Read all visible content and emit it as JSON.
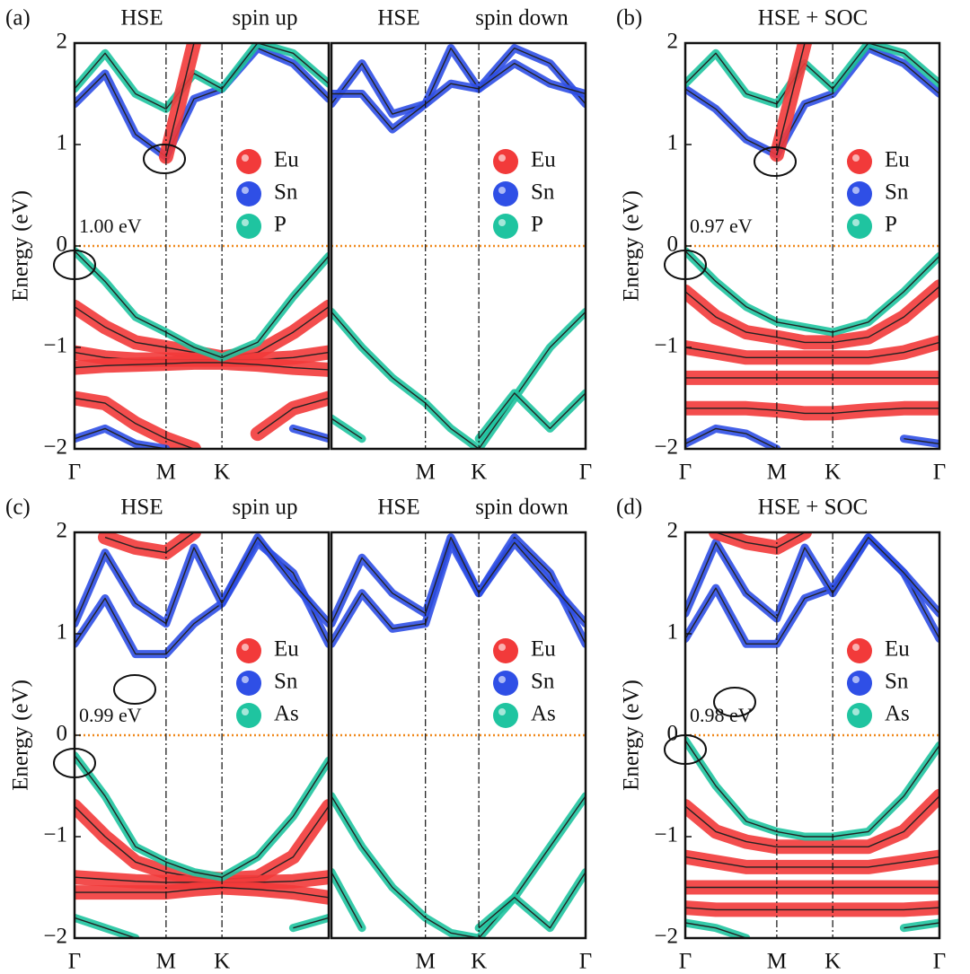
{
  "chart_data": [
    {
      "type": "line",
      "label": "(a)",
      "title": "HSE",
      "subtitle": "spin up",
      "ylabel": "Energy (eV)",
      "annotation": "1.00 eV",
      "xlim": [
        0,
        1
      ],
      "xticks": [
        {
          "value": 0,
          "label": "Γ"
        },
        {
          "value": 0.36,
          "label": "M"
        },
        {
          "value": 0.58,
          "label": "K"
        }
      ],
      "ylim": [
        -2,
        2
      ],
      "yticks": [
        {
          "value": -2,
          "label": "−2"
        },
        {
          "value": -1,
          "label": "−1"
        },
        0,
        1,
        2
      ],
      "hline": 0,
      "hline_color": "#f08a1e",
      "series": [
        {
          "name": "Eu",
          "color": "#f23a3a"
        },
        {
          "name": "Sn",
          "color": "#2f4fe6"
        },
        {
          "name": "P",
          "color": "#1fc4a0"
        }
      ],
      "x": [
        0,
        0.12,
        0.24,
        0.36,
        0.47,
        0.58,
        0.72,
        0.86,
        1
      ],
      "bands": [
        {
          "color": "#2f4fe6",
          "values": [
            1.4,
            1.7,
            1.1,
            0.88,
            1.45,
            1.55,
            1.95,
            1.8,
            1.45
          ]
        },
        {
          "color": "#1fc4a0",
          "values": [
            1.55,
            1.9,
            1.5,
            1.35,
            1.7,
            1.55,
            2.0,
            1.9,
            1.6
          ]
        },
        {
          "color": "#f23a3a",
          "values": [
            null,
            null,
            null,
            0.88,
            2.0,
            null,
            null,
            null,
            null
          ]
        },
        {
          "color": "#f23a3a",
          "values": [
            -0.6,
            -0.8,
            -0.95,
            -1.0,
            -1.05,
            -1.1,
            -1.05,
            -0.85,
            -0.6
          ]
        },
        {
          "color": "#f23a3a",
          "values": [
            -1.05,
            -1.1,
            -1.12,
            -1.12,
            -1.12,
            -1.12,
            -1.12,
            -1.1,
            -1.05
          ]
        },
        {
          "color": "#f23a3a",
          "values": [
            -1.2,
            -1.18,
            -1.17,
            -1.16,
            -1.15,
            -1.15,
            -1.17,
            -1.2,
            -1.22
          ]
        },
        {
          "color": "#1fc4a0",
          "values": [
            -0.05,
            -0.35,
            -0.7,
            -0.85,
            -1.0,
            -1.1,
            -0.95,
            -0.5,
            -0.1
          ]
        },
        {
          "color": "#f23a3a",
          "values": [
            -1.5,
            -1.55,
            -1.75,
            -1.9,
            -2.0,
            null,
            -1.85,
            -1.6,
            -1.5
          ]
        },
        {
          "color": "#2f4fe6",
          "values": [
            -1.9,
            -1.8,
            -1.95,
            -2.0,
            null,
            null,
            null,
            -1.8,
            -1.9
          ]
        }
      ]
    },
    {
      "type": "line",
      "title": "HSE",
      "subtitle": "spin down",
      "xlim": [
        0,
        1
      ],
      "xticks": [
        {
          "value": 0.37,
          "label": "M"
        },
        {
          "value": 0.58,
          "label": "K"
        },
        {
          "value": 1,
          "label": "Γ"
        }
      ],
      "ylim": [
        -2,
        2
      ],
      "hline": 0,
      "hline_color": "#f08a1e",
      "series": [
        {
          "name": "Eu",
          "color": "#f23a3a"
        },
        {
          "name": "Sn",
          "color": "#2f4fe6"
        },
        {
          "name": "P",
          "color": "#1fc4a0"
        }
      ],
      "x": [
        0,
        0.12,
        0.24,
        0.37,
        0.47,
        0.58,
        0.72,
        0.86,
        1
      ],
      "bands": [
        {
          "color": "#2f4fe6",
          "values": [
            1.4,
            1.8,
            1.3,
            1.4,
            1.95,
            1.55,
            1.95,
            1.8,
            1.4
          ]
        },
        {
          "color": "#2f4fe6",
          "values": [
            1.5,
            1.5,
            1.15,
            1.4,
            1.6,
            1.55,
            1.8,
            1.6,
            1.5
          ]
        },
        {
          "color": "#1fc4a0",
          "values": [
            -0.65,
            -1.0,
            -1.3,
            -1.55,
            -1.8,
            -2.0,
            -1.5,
            -1.0,
            -0.65
          ]
        },
        {
          "color": "#1fc4a0",
          "values": [
            -1.7,
            -1.9,
            null,
            null,
            null,
            null,
            null,
            null,
            null
          ]
        },
        {
          "color": "#1fc4a0",
          "values": [
            null,
            null,
            null,
            null,
            null,
            -1.9,
            -1.45,
            -1.8,
            -1.45
          ]
        }
      ]
    },
    {
      "type": "line",
      "label": "(b)",
      "title": "HSE + SOC",
      "ylabel": "Energy (eV)",
      "annotation": "0.97 eV",
      "xlim": [
        0,
        1
      ],
      "xticks": [
        {
          "value": 0,
          "label": "Γ"
        },
        {
          "value": 0.36,
          "label": "M"
        },
        {
          "value": 0.58,
          "label": "K"
        },
        {
          "value": 1,
          "label": "Γ"
        }
      ],
      "ylim": [
        -2,
        2
      ],
      "yticks": [
        {
          "value": -2,
          "label": "−2"
        },
        {
          "value": -1,
          "label": "−1"
        },
        0,
        1,
        2
      ],
      "hline": 0,
      "hline_color": "#f08a1e",
      "series": [
        {
          "name": "Eu",
          "color": "#f23a3a"
        },
        {
          "name": "Sn",
          "color": "#2f4fe6"
        },
        {
          "name": "P",
          "color": "#1fc4a0"
        }
      ],
      "x": [
        0,
        0.12,
        0.24,
        0.36,
        0.47,
        0.58,
        0.72,
        0.86,
        1
      ],
      "bands": [
        {
          "color": "#2f4fe6",
          "values": [
            1.55,
            1.35,
            1.05,
            0.9,
            1.4,
            1.5,
            1.95,
            1.8,
            1.5
          ]
        },
        {
          "color": "#1fc4a0",
          "values": [
            1.6,
            1.9,
            1.5,
            1.4,
            1.8,
            1.55,
            2.0,
            1.9,
            1.6
          ]
        },
        {
          "color": "#f23a3a",
          "values": [
            null,
            null,
            null,
            0.9,
            2.0,
            null,
            null,
            null,
            null
          ]
        },
        {
          "color": "#f23a3a",
          "values": [
            -0.45,
            -0.7,
            -0.85,
            -0.9,
            -0.95,
            -0.95,
            -0.9,
            -0.7,
            -0.4
          ]
        },
        {
          "color": "#f23a3a",
          "values": [
            -1.0,
            -1.05,
            -1.1,
            -1.1,
            -1.1,
            -1.1,
            -1.1,
            -1.05,
            -0.95
          ]
        },
        {
          "color": "#f23a3a",
          "values": [
            -1.3,
            -1.3,
            -1.3,
            -1.3,
            -1.3,
            -1.3,
            -1.3,
            -1.3,
            -1.3
          ]
        },
        {
          "color": "#f23a3a",
          "values": [
            -1.6,
            -1.6,
            -1.6,
            -1.62,
            -1.65,
            -1.65,
            -1.62,
            -1.6,
            -1.6
          ]
        },
        {
          "color": "#1fc4a0",
          "values": [
            -0.05,
            -0.35,
            -0.6,
            -0.75,
            -0.8,
            -0.85,
            -0.75,
            -0.45,
            -0.1
          ]
        },
        {
          "color": "#2f4fe6",
          "values": [
            -1.95,
            -1.8,
            -1.85,
            -2.0,
            null,
            null,
            null,
            -1.9,
            -1.95
          ]
        }
      ]
    },
    {
      "type": "line",
      "label": "(c)",
      "title": "HSE",
      "subtitle": "spin up",
      "ylabel": "Energy (eV)",
      "annotation": "0.99 eV",
      "xlim": [
        0,
        1
      ],
      "xticks": [
        {
          "value": 0,
          "label": "Γ"
        },
        {
          "value": 0.36,
          "label": "M"
        },
        {
          "value": 0.58,
          "label": "K"
        }
      ],
      "ylim": [
        -2,
        2
      ],
      "yticks": [
        {
          "value": -2,
          "label": "−2"
        },
        {
          "value": -1,
          "label": "−1"
        },
        0,
        1,
        2
      ],
      "hline": 0,
      "hline_color": "#f08a1e",
      "series": [
        {
          "name": "Eu",
          "color": "#f23a3a"
        },
        {
          "name": "Sn",
          "color": "#2f4fe6"
        },
        {
          "name": "As",
          "color": "#1fc4a0"
        }
      ],
      "x": [
        0,
        0.12,
        0.24,
        0.36,
        0.47,
        0.58,
        0.72,
        0.86,
        1
      ],
      "bands": [
        {
          "color": "#2f4fe6",
          "values": [
            0.9,
            1.35,
            0.8,
            0.8,
            1.1,
            1.3,
            1.9,
            1.6,
            0.9
          ]
        },
        {
          "color": "#2f4fe6",
          "values": [
            1.1,
            1.8,
            1.3,
            1.1,
            1.85,
            1.3,
            1.95,
            1.5,
            1.1
          ]
        },
        {
          "color": "#f23a3a",
          "values": [
            null,
            1.95,
            1.85,
            1.8,
            2.0,
            null,
            null,
            null,
            null
          ]
        },
        {
          "color": "#f23a3a",
          "values": [
            -0.7,
            -1.0,
            -1.25,
            -1.35,
            -1.4,
            -1.42,
            -1.4,
            -1.2,
            -0.7
          ]
        },
        {
          "color": "#f23a3a",
          "values": [
            -1.4,
            -1.42,
            -1.44,
            -1.45,
            -1.45,
            -1.45,
            -1.45,
            -1.44,
            -1.4
          ]
        },
        {
          "color": "#f23a3a",
          "values": [
            -1.55,
            -1.55,
            -1.55,
            -1.55,
            -1.52,
            -1.5,
            -1.52,
            -1.55,
            -1.6
          ]
        },
        {
          "color": "#1fc4a0",
          "values": [
            -0.2,
            -0.6,
            -1.1,
            -1.25,
            -1.35,
            -1.4,
            -1.2,
            -0.8,
            -0.25
          ]
        },
        {
          "color": "#1fc4a0",
          "values": [
            -1.8,
            -1.9,
            -2.0,
            null,
            null,
            null,
            null,
            -1.9,
            -1.8
          ]
        }
      ]
    },
    {
      "type": "line",
      "title": "HSE",
      "subtitle": "spin down",
      "xlim": [
        0,
        1
      ],
      "xticks": [
        {
          "value": 0.37,
          "label": "M"
        },
        {
          "value": 0.58,
          "label": "K"
        },
        {
          "value": 1,
          "label": "Γ"
        }
      ],
      "ylim": [
        -2,
        2
      ],
      "hline": 0,
      "hline_color": "#f08a1e",
      "series": [
        {
          "name": "Eu",
          "color": "#f23a3a"
        },
        {
          "name": "Sn",
          "color": "#2f4fe6"
        },
        {
          "name": "As",
          "color": "#1fc4a0"
        }
      ],
      "x": [
        0,
        0.12,
        0.24,
        0.37,
        0.47,
        0.58,
        0.72,
        0.86,
        1
      ],
      "bands": [
        {
          "color": "#2f4fe6",
          "values": [
            0.9,
            1.4,
            1.05,
            1.1,
            1.9,
            1.4,
            1.95,
            1.6,
            0.9
          ]
        },
        {
          "color": "#2f4fe6",
          "values": [
            1.1,
            1.75,
            1.4,
            1.2,
            1.95,
            1.4,
            1.9,
            1.5,
            1.1
          ]
        },
        {
          "color": "#1fc4a0",
          "values": [
            -0.6,
            -1.1,
            -1.5,
            -1.8,
            -1.95,
            -2.0,
            -1.6,
            -1.1,
            -0.6
          ]
        },
        {
          "color": "#1fc4a0",
          "values": [
            -1.35,
            -1.9,
            null,
            null,
            null,
            null,
            null,
            null,
            null
          ]
        },
        {
          "color": "#1fc4a0",
          "values": [
            null,
            null,
            null,
            null,
            null,
            -1.9,
            -1.6,
            -1.9,
            -1.35
          ]
        }
      ]
    },
    {
      "type": "line",
      "label": "(d)",
      "title": "HSE + SOC",
      "ylabel": "Energy (eV)",
      "annotation": "0.98 eV",
      "xlim": [
        0,
        1
      ],
      "xticks": [
        {
          "value": 0,
          "label": "Γ"
        },
        {
          "value": 0.36,
          "label": "M"
        },
        {
          "value": 0.58,
          "label": "K"
        },
        {
          "value": 1,
          "label": "Γ"
        }
      ],
      "ylim": [
        -2,
        2
      ],
      "yticks": [
        {
          "value": -2,
          "label": "−2"
        },
        {
          "value": -1,
          "label": "−1"
        },
        0,
        1,
        2
      ],
      "hline": 0,
      "hline_color": "#f08a1e",
      "series": [
        {
          "name": "Eu",
          "color": "#f23a3a"
        },
        {
          "name": "Sn",
          "color": "#2f4fe6"
        },
        {
          "name": "As",
          "color": "#1fc4a0"
        }
      ],
      "x": [
        0,
        0.12,
        0.24,
        0.36,
        0.47,
        0.58,
        0.72,
        0.86,
        1
      ],
      "bands": [
        {
          "color": "#2f4fe6",
          "values": [
            0.95,
            1.45,
            0.9,
            0.9,
            1.35,
            1.45,
            1.95,
            1.6,
            0.95
          ]
        },
        {
          "color": "#2f4fe6",
          "values": [
            1.2,
            1.9,
            1.4,
            1.15,
            1.85,
            1.4,
            1.95,
            1.6,
            1.2
          ]
        },
        {
          "color": "#f23a3a",
          "values": [
            null,
            2.0,
            1.9,
            1.85,
            2.0,
            null,
            null,
            null,
            null
          ]
        },
        {
          "color": "#f23a3a",
          "values": [
            -0.7,
            -0.95,
            -1.05,
            -1.1,
            -1.1,
            -1.1,
            -1.1,
            -0.95,
            -0.6
          ]
        },
        {
          "color": "#f23a3a",
          "values": [
            -1.2,
            -1.25,
            -1.3,
            -1.3,
            -1.3,
            -1.3,
            -1.3,
            -1.25,
            -1.2
          ]
        },
        {
          "color": "#f23a3a",
          "values": [
            -1.5,
            -1.5,
            -1.5,
            -1.5,
            -1.5,
            -1.5,
            -1.5,
            -1.5,
            -1.5
          ]
        },
        {
          "color": "#f23a3a",
          "values": [
            -1.7,
            -1.72,
            -1.72,
            -1.72,
            -1.72,
            -1.72,
            -1.72,
            -1.72,
            -1.7
          ]
        },
        {
          "color": "#1fc4a0",
          "values": [
            -0.05,
            -0.5,
            -0.85,
            -0.95,
            -1.0,
            -1.0,
            -0.95,
            -0.6,
            -0.1
          ]
        },
        {
          "color": "#1fc4a0",
          "values": [
            -1.85,
            -1.9,
            -2.0,
            null,
            null,
            null,
            null,
            -1.9,
            -1.85
          ]
        }
      ]
    }
  ]
}
